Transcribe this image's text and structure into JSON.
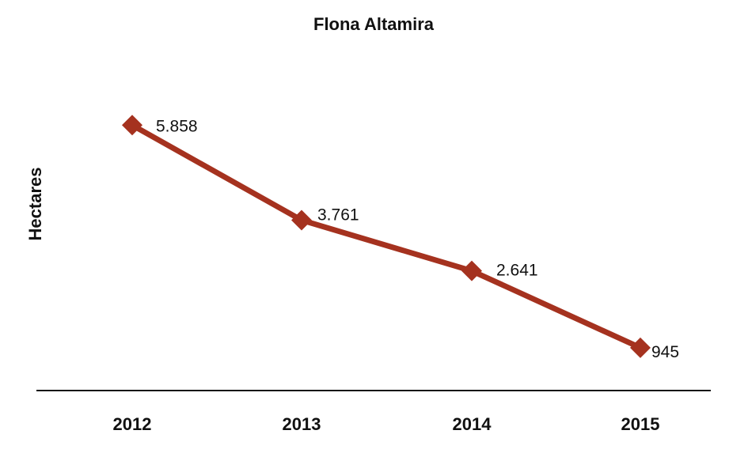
{
  "chart_data": {
    "type": "line",
    "title": "Flona Altamira",
    "xlabel": "",
    "ylabel": "Hectares",
    "categories": [
      "2012",
      "2013",
      "2014",
      "2015"
    ],
    "series": [
      {
        "values": [
          5858,
          3761,
          2641,
          945
        ],
        "data_labels": [
          "5.858",
          "3.761",
          "2.641",
          "945"
        ],
        "color": "#a5321f",
        "marker": "diamond"
      }
    ],
    "ylim": [
      0,
      7800
    ],
    "grid": false,
    "legend": "none",
    "colors": {
      "line": "#a5321f",
      "axis": "#111111",
      "text": "#111111"
    }
  }
}
